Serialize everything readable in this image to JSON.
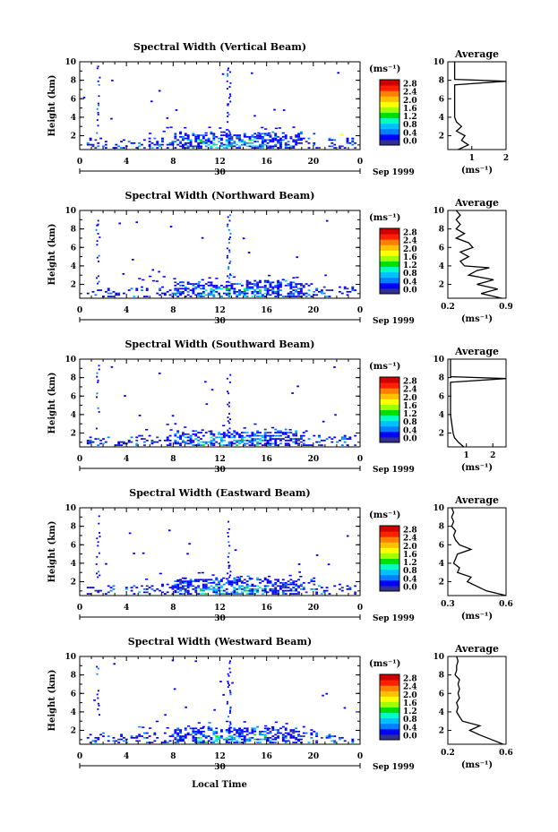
{
  "figure": {
    "xlabel": "Local Time",
    "ylabel": "Height (km)",
    "unit_label": "(ms⁻¹)",
    "date_day": "30",
    "date_rest": "Sep 1999",
    "avg_title": "Average",
    "avg_xlabel": "(ms⁻¹)",
    "colorbar_ticks": [
      "0.0",
      "0.4",
      "0.8",
      "1.2",
      "1.6",
      "2.0",
      "2.4",
      "2.8"
    ],
    "colorbar_colors": [
      "#303090",
      "#0000ff",
      "#0080ff",
      "#00c0ff",
      "#00ffc0",
      "#00e000",
      "#a0ff00",
      "#ffff00",
      "#ffc000",
      "#ff8000",
      "#ff2000",
      "#d00000"
    ],
    "time_ticks": [
      "0",
      "4",
      "8",
      "12",
      "16",
      "20",
      "0"
    ],
    "height_ticks": [
      "2",
      "4",
      "6",
      "8",
      "10"
    ]
  },
  "chart_data": [
    {
      "type": "heatmap",
      "title": "Spectral Width (Vertical Beam)",
      "x_range": [
        0,
        24
      ],
      "y_range": [
        0.5,
        10
      ],
      "avg": {
        "xlim": [
          0.3,
          2
        ],
        "xticks": [
          "1",
          "2"
        ],
        "profile": [
          [
            0.5,
            0.6
          ],
          [
            1.0,
            0.9
          ],
          [
            1.5,
            0.7
          ],
          [
            2.0,
            0.8
          ],
          [
            2.5,
            0.55
          ],
          [
            3.0,
            0.7
          ],
          [
            3.5,
            0.55
          ],
          [
            4.0,
            0.5
          ],
          [
            5.0,
            0.5
          ],
          [
            6.0,
            0.5
          ],
          [
            7.5,
            0.5
          ],
          [
            7.9,
            2.0
          ],
          [
            8.1,
            0.5
          ],
          [
            9.0,
            0.5
          ],
          [
            10,
            0.5
          ]
        ]
      }
    },
    {
      "type": "heatmap",
      "title": "Spectral Width (Northward Beam)",
      "x_range": [
        0,
        24
      ],
      "y_range": [
        0.5,
        10
      ],
      "avg": {
        "xlim": [
          0.2,
          0.9
        ],
        "xticks": [
          "0.2",
          "0.9"
        ],
        "profile": [
          [
            0.5,
            0.85
          ],
          [
            1.0,
            0.6
          ],
          [
            1.5,
            0.8
          ],
          [
            2.0,
            0.55
          ],
          [
            2.5,
            0.75
          ],
          [
            3.0,
            0.45
          ],
          [
            3.5,
            0.55
          ],
          [
            3.8,
            0.7
          ],
          [
            4.0,
            0.4
          ],
          [
            4.5,
            0.35
          ],
          [
            5.0,
            0.45
          ],
          [
            5.5,
            0.35
          ],
          [
            6.0,
            0.5
          ],
          [
            6.5,
            0.45
          ],
          [
            7.0,
            0.3
          ],
          [
            7.5,
            0.4
          ],
          [
            8.0,
            0.3
          ],
          [
            8.5,
            0.35
          ],
          [
            9.0,
            0.3
          ],
          [
            9.5,
            0.35
          ],
          [
            10,
            0.3
          ]
        ]
      }
    },
    {
      "type": "heatmap",
      "title": "Spectral Width (Southward Beam)",
      "x_range": [
        0,
        24
      ],
      "y_range": [
        0.5,
        10
      ],
      "avg": {
        "xlim": [
          0.3,
          2.5
        ],
        "xticks": [
          "1",
          "2"
        ],
        "profile": [
          [
            0.5,
            0.9
          ],
          [
            1.0,
            0.7
          ],
          [
            1.5,
            0.55
          ],
          [
            2.0,
            0.5
          ],
          [
            3.0,
            0.45
          ],
          [
            4.0,
            0.4
          ],
          [
            5.0,
            0.4
          ],
          [
            6.0,
            0.4
          ],
          [
            7.5,
            0.4
          ],
          [
            7.9,
            2.5
          ],
          [
            8.1,
            0.4
          ],
          [
            9.0,
            0.4
          ],
          [
            10,
            0.4
          ]
        ]
      }
    },
    {
      "type": "heatmap",
      "title": "Spectral Width (Eastward Beam)",
      "x_range": [
        0,
        24
      ],
      "y_range": [
        0.5,
        10
      ],
      "avg": {
        "xlim": [
          0.3,
          0.6
        ],
        "xticks": [
          "0.3",
          "0.6"
        ],
        "profile": [
          [
            0.5,
            0.6
          ],
          [
            1.0,
            0.5
          ],
          [
            1.5,
            0.45
          ],
          [
            2.0,
            0.4
          ],
          [
            2.5,
            0.42
          ],
          [
            3.0,
            0.35
          ],
          [
            3.5,
            0.36
          ],
          [
            4.0,
            0.33
          ],
          [
            4.5,
            0.34
          ],
          [
            5.0,
            0.35
          ],
          [
            5.5,
            0.42
          ],
          [
            6.0,
            0.36
          ],
          [
            6.5,
            0.34
          ],
          [
            7.0,
            0.33
          ],
          [
            7.5,
            0.34
          ],
          [
            8.0,
            0.32
          ],
          [
            8.5,
            0.33
          ],
          [
            9.0,
            0.32
          ],
          [
            9.5,
            0.33
          ],
          [
            10,
            0.32
          ]
        ]
      }
    },
    {
      "type": "heatmap",
      "title": "Spectral Width (Westward Beam)",
      "x_range": [
        0,
        24
      ],
      "y_range": [
        0.5,
        10
      ],
      "avg": {
        "xlim": [
          0.2,
          0.6
        ],
        "xticks": [
          "0.2",
          "0.6"
        ],
        "profile": [
          [
            0.5,
            0.58
          ],
          [
            1.0,
            0.5
          ],
          [
            1.5,
            0.42
          ],
          [
            2.0,
            0.35
          ],
          [
            2.5,
            0.42
          ],
          [
            3.0,
            0.3
          ],
          [
            3.5,
            0.28
          ],
          [
            4.0,
            0.26
          ],
          [
            4.5,
            0.27
          ],
          [
            5.0,
            0.26
          ],
          [
            5.5,
            0.28
          ],
          [
            6.0,
            0.27
          ],
          [
            6.5,
            0.28
          ],
          [
            7.0,
            0.27
          ],
          [
            7.5,
            0.28
          ],
          [
            8.0,
            0.25
          ],
          [
            8.5,
            0.26
          ],
          [
            9.0,
            0.26
          ],
          [
            9.5,
            0.27
          ],
          [
            10,
            0.26
          ]
        ]
      }
    }
  ]
}
